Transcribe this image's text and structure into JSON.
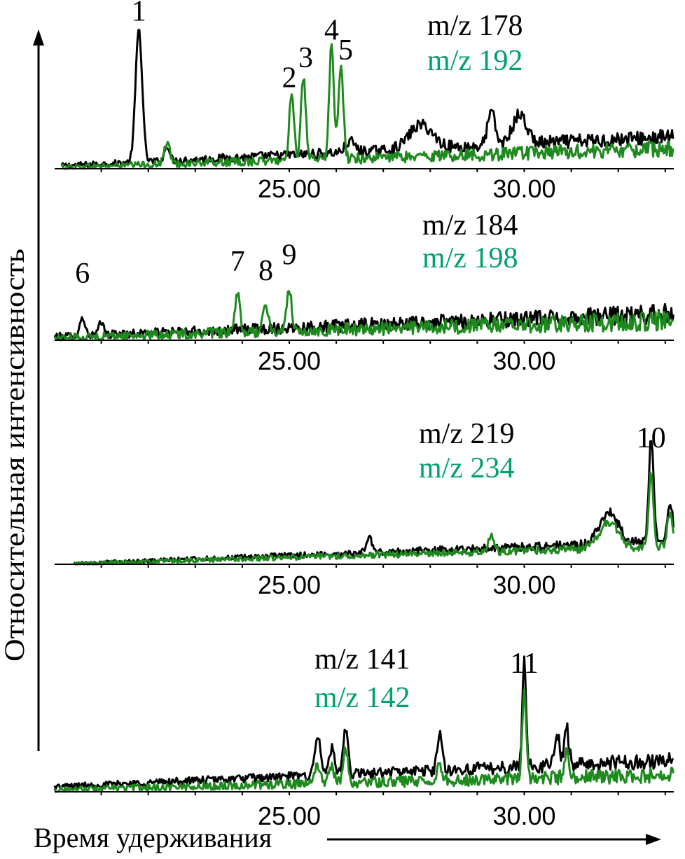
{
  "chart_data": {
    "type": "line",
    "ylabel": "Относительная интенсивность",
    "xlabel": "Время удерживания",
    "xlim": [
      19.5,
      33.2
    ],
    "x_ticks": [
      "25.00",
      "30.00"
    ],
    "colors": {
      "black_trace": "#000000",
      "green_trace": "#1e8a1e",
      "green_text": "#00a070"
    },
    "panels": [
      {
        "ions": [
          "m/z 178",
          "m/z 192"
        ],
        "series": [
          {
            "name": "m/z 178",
            "color": "#000000",
            "baseline": 0.02,
            "drift": 0.22,
            "noise": 0.04,
            "peaks": [
              [
                21.8,
                1.0,
                0.07
              ],
              [
                22.4,
                0.12,
                0.05
              ],
              [
                26.3,
                0.08,
                0.1
              ],
              [
                27.8,
                0.18,
                0.25
              ],
              [
                29.3,
                0.25,
                0.08
              ],
              [
                29.9,
                0.22,
                0.15
              ]
            ]
          },
          {
            "name": "m/z 192",
            "color": "#1e8a1e",
            "baseline": 0.01,
            "drift": 0.14,
            "noise": 0.04,
            "peaks": [
              [
                22.4,
                0.16,
                0.06
              ],
              [
                25.05,
                0.52,
                0.05
              ],
              [
                25.3,
                0.62,
                0.05
              ],
              [
                25.9,
                0.86,
                0.05
              ],
              [
                26.1,
                0.7,
                0.05
              ]
            ]
          }
        ],
        "peak_labels": [
          {
            "text": "1",
            "x": 21.8,
            "y": 1.07
          },
          {
            "text": "2",
            "x": 25.0,
            "y": 0.57
          },
          {
            "text": "3",
            "x": 25.35,
            "y": 0.72
          },
          {
            "text": "4",
            "x": 25.9,
            "y": 0.93
          },
          {
            "text": "5",
            "x": 26.2,
            "y": 0.78
          }
        ]
      },
      {
        "ions": [
          "m/z 184",
          "m/z 198"
        ],
        "series": [
          {
            "name": "m/z 184",
            "color": "#000000",
            "baseline": 0.03,
            "drift": 0.17,
            "noise": 0.05,
            "peaks": [
              [
                20.6,
                0.14,
                0.05
              ],
              [
                21.0,
                0.09,
                0.05
              ]
            ]
          },
          {
            "name": "m/z 198",
            "color": "#1e8a1e",
            "baseline": 0.02,
            "drift": 0.13,
            "noise": 0.05,
            "peaks": [
              [
                23.9,
                0.28,
                0.05
              ],
              [
                24.5,
                0.22,
                0.05
              ],
              [
                25.0,
                0.33,
                0.05
              ]
            ]
          }
        ],
        "peak_labels": [
          {
            "text": "6",
            "x": 20.6,
            "y": 0.39
          },
          {
            "text": "7",
            "x": 23.9,
            "y": 0.48
          },
          {
            "text": "8",
            "x": 24.5,
            "y": 0.41
          },
          {
            "text": "9",
            "x": 25.0,
            "y": 0.53
          }
        ]
      },
      {
        "ions": [
          "m/z 219",
          "m/z 234"
        ],
        "series": [
          {
            "name": "m/z 219",
            "color": "#000000",
            "baseline": 0.0,
            "drift": 0.22,
            "noise": 0.03,
            "peaks": [
              [
                20.1,
                0.09,
                0.05
              ],
              [
                26.7,
                0.15,
                0.06
              ],
              [
                31.8,
                0.3,
                0.2
              ],
              [
                32.7,
                1.0,
                0.05
              ],
              [
                33.1,
                0.35,
                0.06
              ]
            ]
          },
          {
            "name": "m/z 234",
            "color": "#1e8a1e",
            "baseline": 0.0,
            "drift": 0.17,
            "noise": 0.03,
            "peaks": [
              [
                20.1,
                0.05,
                0.05
              ],
              [
                29.3,
                0.15,
                0.06
              ],
              [
                31.8,
                0.25,
                0.2
              ],
              [
                32.7,
                0.72,
                0.05
              ],
              [
                33.1,
                0.3,
                0.06
              ]
            ]
          }
        ],
        "peak_labels": [
          {
            "text": "10",
            "x": 32.7,
            "y": 1.06
          }
        ]
      },
      {
        "ions": [
          "m/z 141",
          "m/z 142"
        ],
        "series": [
          {
            "name": "m/z 141",
            "color": "#000000",
            "baseline": 0.05,
            "drift": 0.25,
            "noise": 0.05,
            "peaks": [
              [
                25.6,
                0.38,
                0.06
              ],
              [
                25.9,
                0.25,
                0.06
              ],
              [
                26.2,
                0.42,
                0.05
              ],
              [
                28.2,
                0.35,
                0.05
              ],
              [
                30.0,
                1.0,
                0.04
              ],
              [
                30.7,
                0.3,
                0.05
              ],
              [
                30.9,
                0.35,
                0.05
              ]
            ]
          },
          {
            "name": "m/z 142",
            "color": "#1e8a1e",
            "baseline": 0.02,
            "drift": 0.14,
            "noise": 0.05,
            "peaks": [
              [
                25.6,
                0.18,
                0.06
              ],
              [
                25.9,
                0.15,
                0.06
              ],
              [
                26.2,
                0.33,
                0.05
              ],
              [
                28.2,
                0.15,
                0.05
              ],
              [
                30.0,
                0.8,
                0.04
              ],
              [
                30.9,
                0.25,
                0.05
              ]
            ]
          }
        ],
        "peak_labels": [
          {
            "text": "11",
            "x": 30.0,
            "y": 1.08
          }
        ]
      }
    ]
  }
}
